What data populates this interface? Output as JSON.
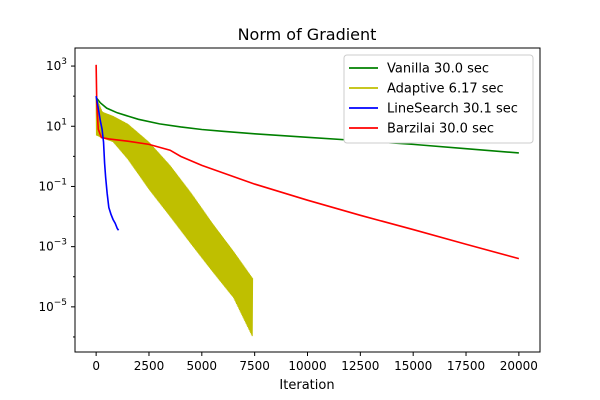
{
  "chart_data": {
    "type": "line",
    "title": "Norm of Gradient",
    "xlabel": "Iteration",
    "ylabel": "",
    "xlim": [
      -1000,
      21000
    ],
    "ylim_log10": [
      -6.5,
      3.6
    ],
    "y_scale": "log",
    "x_ticks": [
      0,
      2500,
      5000,
      7500,
      10000,
      12500,
      15000,
      17500,
      20000
    ],
    "y_ticks": [
      {
        "exp": -5,
        "label": "10",
        "sup": "−5"
      },
      {
        "exp": -3,
        "label": "10",
        "sup": "−3"
      },
      {
        "exp": -1,
        "label": "10",
        "sup": "−1"
      },
      {
        "exp": 1,
        "label": "10",
        "sup": "1"
      },
      {
        "exp": 3,
        "label": "10",
        "sup": "3"
      }
    ],
    "grid": false,
    "legend_position": "upper-right",
    "series": [
      {
        "name": "Vanilla 30.0 sec",
        "color": "#008000",
        "points": [
          [
            0,
            90
          ],
          [
            200,
            60
          ],
          [
            500,
            40
          ],
          [
            1000,
            28
          ],
          [
            2000,
            17
          ],
          [
            3000,
            12
          ],
          [
            4000,
            9.5
          ],
          [
            5000,
            7.8
          ],
          [
            6000,
            6.8
          ],
          [
            7500,
            5.6
          ],
          [
            10000,
            4.3
          ],
          [
            12500,
            3.3
          ],
          [
            15000,
            2.5
          ],
          [
            17500,
            1.8
          ],
          [
            20000,
            1.3
          ]
        ]
      },
      {
        "name": "Adaptive 6.17 sec",
        "color": "#bfbf00",
        "oscillating": true,
        "upper": [
          [
            0,
            95
          ],
          [
            300,
            30
          ],
          [
            800,
            22
          ],
          [
            1500,
            12
          ],
          [
            2500,
            3
          ],
          [
            3500,
            0.5
          ],
          [
            4500,
            0.06
          ],
          [
            5500,
            0.006
          ],
          [
            6500,
            0.0007
          ],
          [
            7400,
            9e-05
          ]
        ],
        "lower": [
          [
            0,
            5
          ],
          [
            300,
            4
          ],
          [
            800,
            3
          ],
          [
            1500,
            0.8
          ],
          [
            2500,
            0.08
          ],
          [
            3500,
            0.01
          ],
          [
            4500,
            0.0012
          ],
          [
            5500,
            0.00015
          ],
          [
            6500,
            2e-05
          ],
          [
            7400,
            1e-06
          ]
        ]
      },
      {
        "name": "LineSearch 30.1 sec",
        "color": "#0000ff",
        "points": [
          [
            0,
            100
          ],
          [
            100,
            40
          ],
          [
            200,
            15
          ],
          [
            280,
            8
          ],
          [
            350,
            3
          ],
          [
            400,
            0.6
          ],
          [
            450,
            0.2
          ],
          [
            520,
            0.06
          ],
          [
            600,
            0.02
          ],
          [
            700,
            0.012
          ],
          [
            800,
            0.008
          ],
          [
            900,
            0.006
          ],
          [
            1000,
            0.004
          ],
          [
            1060,
            0.0035
          ]
        ]
      },
      {
        "name": "Barzilai 30.0 sec",
        "color": "#ff0000",
        "points": [
          [
            0,
            1100
          ],
          [
            30,
            60
          ],
          [
            100,
            8
          ],
          [
            250,
            4.2
          ],
          [
            600,
            3.8
          ],
          [
            1500,
            3.2
          ],
          [
            2500,
            2.5
          ],
          [
            3500,
            1.6
          ],
          [
            4000,
            1.0
          ],
          [
            5000,
            0.5
          ],
          [
            7500,
            0.12
          ],
          [
            10000,
            0.035
          ],
          [
            12500,
            0.011
          ],
          [
            15000,
            0.0037
          ],
          [
            17500,
            0.0012
          ],
          [
            20000,
            0.0004
          ]
        ]
      }
    ]
  }
}
